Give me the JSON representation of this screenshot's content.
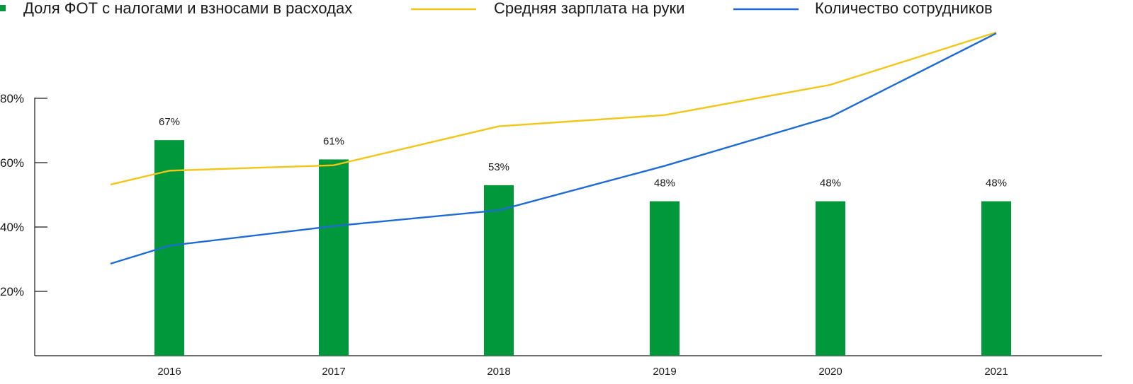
{
  "chart_data": {
    "type": "bar",
    "categories": [
      "2016",
      "2017",
      "2018",
      "2019",
      "2020",
      "2021"
    ],
    "series": [
      {
        "name": "Доля ФОТ с налогами и взносами в расходах",
        "kind": "bar",
        "color": "#00983A",
        "values": [
          67,
          61,
          53,
          48,
          48,
          48
        ],
        "labels": [
          "67%",
          "61%",
          "53%",
          "48%",
          "48%",
          "48%"
        ]
      },
      {
        "name": "Средняя зарплата на руки",
        "kind": "line",
        "color": "#F2C619",
        "values": [
          57.5,
          59.2,
          71.3,
          74.8,
          84.2,
          100.5
        ]
      },
      {
        "name": "Количество сотрудников",
        "kind": "line",
        "color": "#1E6BD6",
        "values": [
          34.2,
          40.3,
          45.2,
          59.0,
          74.2,
          100.2
        ]
      }
    ],
    "line_leadin_values": {
      "Средняя зарплата на руки": 53.2,
      "Количество сотрудников": 28.6
    },
    "yticks": [
      "20%",
      "40%",
      "60%",
      "80%"
    ],
    "ytick_values": [
      20,
      40,
      60,
      80
    ],
    "ylim": [
      0,
      100
    ],
    "xlabel": "",
    "ylabel": "",
    "title": "",
    "grid": false,
    "legend_position": "top"
  }
}
